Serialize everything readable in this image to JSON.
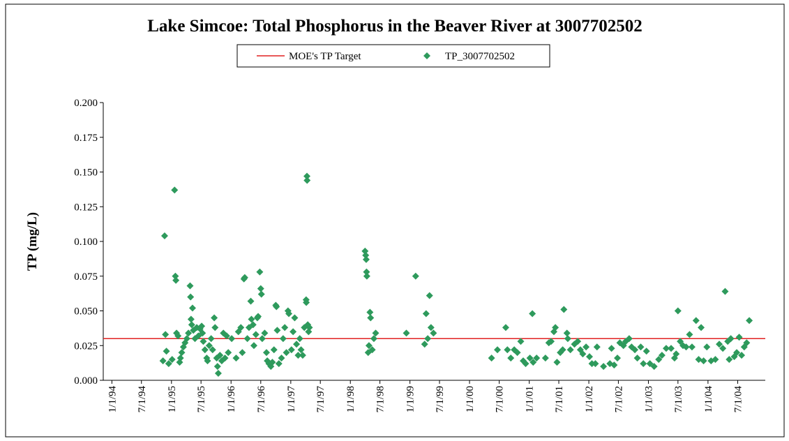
{
  "chart_data": {
    "type": "scatter",
    "title": "Lake Simcoe: Total Phosphorus in the Beaver River at 3007702502",
    "y_label": "TP (mg/L)",
    "xlim": [
      "1993-11-09",
      "2004-12-17"
    ],
    "xticks": [
      {
        "value": "1994-01-01",
        "label": "1/1/94"
      },
      {
        "value": "1994-07-01",
        "label": "7/1/94"
      },
      {
        "value": "1995-01-01",
        "label": "1/1/95"
      },
      {
        "value": "1995-07-01",
        "label": "7/1/95"
      },
      {
        "value": "1996-01-01",
        "label": "1/1/96"
      },
      {
        "value": "1996-07-01",
        "label": "7/1/96"
      },
      {
        "value": "1997-01-01",
        "label": "1/1/97"
      },
      {
        "value": "1997-07-01",
        "label": "7/1/97"
      },
      {
        "value": "1998-01-01",
        "label": "1/1/98"
      },
      {
        "value": "1998-07-01",
        "label": "7/1/98"
      },
      {
        "value": "1999-01-01",
        "label": "1/1/99"
      },
      {
        "value": "1999-07-01",
        "label": "7/1/99"
      },
      {
        "value": "2000-01-01",
        "label": "1/1/00"
      },
      {
        "value": "2000-07-01",
        "label": "7/1/00"
      },
      {
        "value": "2001-01-01",
        "label": "1/1/01"
      },
      {
        "value": "2001-07-01",
        "label": "7/1/01"
      },
      {
        "value": "2002-01-01",
        "label": "1/1/02"
      },
      {
        "value": "2002-07-01",
        "label": "7/1/02"
      },
      {
        "value": "2003-01-01",
        "label": "1/1/03"
      },
      {
        "value": "2003-07-01",
        "label": "7/1/03"
      },
      {
        "value": "2004-01-01",
        "label": "1/1/04"
      },
      {
        "value": "2004-07-01",
        "label": "7/1/04"
      }
    ],
    "ylim": [
      0,
      0.2
    ],
    "yticks": [
      {
        "value": 0,
        "label": "0.000"
      },
      {
        "value": 0.025,
        "label": "0.025"
      },
      {
        "value": 0.05,
        "label": "0.050"
      },
      {
        "value": 0.075,
        "label": "0.075"
      },
      {
        "value": 0.1,
        "label": "0.100"
      },
      {
        "value": 0.125,
        "label": "0.125"
      },
      {
        "value": 0.15,
        "label": "0.150"
      },
      {
        "value": 0.175,
        "label": "0.175"
      },
      {
        "value": 0.2,
        "label": "0.200"
      }
    ],
    "grid": false,
    "legend": "top",
    "series": [
      {
        "name": "MOE's TP Target",
        "color": "#e02020",
        "kind": "line",
        "x": [
          "1993-11-09",
          "2004-12-17"
        ],
        "values": [
          0.03,
          0.03
        ]
      },
      {
        "name": "TP_3007702502",
        "color": "#2e9a5c",
        "kind": "marker",
        "x": [
          "1994-11-10",
          "1994-11-20",
          "1994-11-25",
          "1994-12-01",
          "1994-12-15",
          "1995-01-05",
          "1995-01-20",
          "1995-01-25",
          "1995-01-28",
          "1995-02-01",
          "1995-02-10",
          "1995-02-20",
          "1995-02-25",
          "1995-03-05",
          "1995-03-15",
          "1995-03-25",
          "1995-04-05",
          "1995-04-15",
          "1995-04-25",
          "1995-04-28",
          "1995-05-01",
          "1995-05-05",
          "1995-05-10",
          "1995-05-15",
          "1995-05-25",
          "1995-06-05",
          "1995-06-15",
          "1995-06-25",
          "1995-07-05",
          "1995-07-10",
          "1995-07-15",
          "1995-07-25",
          "1995-08-05",
          "1995-08-10",
          "1995-08-20",
          "1995-09-01",
          "1995-09-10",
          "1995-09-20",
          "1995-09-25",
          "1995-10-05",
          "1995-10-10",
          "1995-10-15",
          "1995-10-25",
          "1995-11-05",
          "1995-11-15",
          "1995-11-25",
          "1995-12-05",
          "1995-12-15",
          "1996-01-05",
          "1996-02-01",
          "1996-02-15",
          "1996-03-01",
          "1996-03-10",
          "1996-03-20",
          "1996-03-25",
          "1996-04-10",
          "1996-04-20",
          "1996-05-01",
          "1996-05-05",
          "1996-05-15",
          "1996-05-20",
          "1996-06-01",
          "1996-06-10",
          "1996-06-15",
          "1996-06-25",
          "1996-07-01",
          "1996-07-05",
          "1996-07-10",
          "1996-07-25",
          "1996-08-05",
          "1996-08-10",
          "1996-08-20",
          "1996-09-01",
          "1996-09-10",
          "1996-09-20",
          "1996-10-01",
          "1996-10-05",
          "1996-10-10",
          "1996-10-20",
          "1996-11-05",
          "1996-11-15",
          "1996-11-25",
          "1996-12-05",
          "1996-12-15",
          "1996-12-20",
          "1997-01-05",
          "1997-01-15",
          "1997-01-25",
          "1997-02-05",
          "1997-02-15",
          "1997-02-25",
          "1997-03-05",
          "1997-03-15",
          "1997-03-25",
          "1997-04-05",
          "1997-04-06",
          "1997-04-10",
          "1997-04-11",
          "1997-04-15",
          "1997-04-20",
          "1997-04-25",
          "1998-04-01",
          "1998-04-05",
          "1998-04-08",
          "1998-04-10",
          "1998-04-12",
          "1998-04-20",
          "1998-04-25",
          "1998-05-01",
          "1998-05-05",
          "1998-05-15",
          "1998-05-25",
          "1998-06-05",
          "1998-12-10",
          "1999-02-05",
          "1999-04-01",
          "1999-04-10",
          "1999-04-20",
          "1999-05-01",
          "1999-05-10",
          "1999-05-25",
          "2000-05-15",
          "2000-06-20",
          "2000-08-10",
          "2000-08-20",
          "2000-09-10",
          "2000-10-01",
          "2000-10-20",
          "2000-11-10",
          "2000-11-25",
          "2000-12-10",
          "2001-01-05",
          "2001-01-20",
          "2001-01-25",
          "2001-02-15",
          "2001-04-10",
          "2001-05-01",
          "2001-05-15",
          "2001-06-01",
          "2001-06-10",
          "2001-06-20",
          "2001-07-10",
          "2001-07-25",
          "2001-08-01",
          "2001-08-20",
          "2001-08-25",
          "2001-09-10",
          "2001-10-05",
          "2001-10-25",
          "2001-11-10",
          "2001-11-25",
          "2001-12-15",
          "2002-01-05",
          "2002-01-20",
          "2002-02-10",
          "2002-02-20",
          "2002-04-01",
          "2002-05-10",
          "2002-05-20",
          "2002-06-05",
          "2002-06-25",
          "2002-07-10",
          "2002-08-01",
          "2002-08-15",
          "2002-09-05",
          "2002-09-20",
          "2002-10-10",
          "2002-10-25",
          "2002-11-15",
          "2002-12-01",
          "2002-12-20",
          "2003-01-10",
          "2003-02-05",
          "2003-03-05",
          "2003-03-25",
          "2003-04-20",
          "2003-05-20",
          "2003-06-10",
          "2003-06-20",
          "2003-07-01",
          "2003-07-15",
          "2003-08-01",
          "2003-08-20",
          "2003-09-10",
          "2003-09-25",
          "2003-10-20",
          "2003-11-05",
          "2003-11-20",
          "2003-12-05",
          "2003-12-25",
          "2004-01-20",
          "2004-02-15",
          "2004-03-10",
          "2004-04-01",
          "2004-04-15",
          "2004-05-01",
          "2004-05-10",
          "2004-05-20",
          "2004-06-10",
          "2004-06-25",
          "2004-07-10",
          "2004-07-25",
          "2004-08-10",
          "2004-08-25",
          "2004-09-10"
        ],
        "values": [
          0.014,
          0.104,
          0.033,
          0.021,
          0.012,
          0.015,
          0.137,
          0.075,
          0.072,
          0.034,
          0.032,
          0.013,
          0.016,
          0.02,
          0.024,
          0.027,
          0.03,
          0.034,
          0.068,
          0.06,
          0.044,
          0.04,
          0.052,
          0.036,
          0.03,
          0.038,
          0.032,
          0.037,
          0.039,
          0.034,
          0.028,
          0.022,
          0.016,
          0.014,
          0.025,
          0.03,
          0.022,
          0.045,
          0.038,
          0.016,
          0.01,
          0.005,
          0.018,
          0.014,
          0.034,
          0.016,
          0.032,
          0.02,
          0.03,
          0.016,
          0.035,
          0.038,
          0.02,
          0.073,
          0.074,
          0.03,
          0.038,
          0.057,
          0.044,
          0.04,
          0.025,
          0.033,
          0.045,
          0.046,
          0.078,
          0.066,
          0.062,
          0.03,
          0.034,
          0.02,
          0.014,
          0.012,
          0.01,
          0.013,
          0.022,
          0.054,
          0.053,
          0.036,
          0.012,
          0.016,
          0.03,
          0.038,
          0.02,
          0.05,
          0.048,
          0.022,
          0.035,
          0.045,
          0.026,
          0.018,
          0.03,
          0.022,
          0.018,
          0.038,
          0.058,
          0.056,
          0.147,
          0.144,
          0.04,
          0.035,
          0.038,
          0.093,
          0.09,
          0.087,
          0.078,
          0.075,
          0.02,
          0.025,
          0.049,
          0.045,
          0.022,
          0.03,
          0.034,
          0.034,
          0.075,
          0.026,
          0.048,
          0.03,
          0.061,
          0.038,
          0.034,
          0.016,
          0.022,
          0.038,
          0.022,
          0.016,
          0.022,
          0.02,
          0.028,
          0.014,
          0.012,
          0.016,
          0.048,
          0.013,
          0.016,
          0.016,
          0.027,
          0.028,
          0.035,
          0.038,
          0.013,
          0.02,
          0.022,
          0.051,
          0.034,
          0.03,
          0.022,
          0.026,
          0.028,
          0.022,
          0.019,
          0.024,
          0.017,
          0.012,
          0.012,
          0.024,
          0.01,
          0.012,
          0.023,
          0.011,
          0.016,
          0.027,
          0.025,
          0.028,
          0.03,
          0.024,
          0.022,
          0.016,
          0.024,
          0.012,
          0.021,
          0.012,
          0.01,
          0.015,
          0.018,
          0.023,
          0.023,
          0.016,
          0.019,
          0.05,
          0.028,
          0.025,
          0.024,
          0.033,
          0.024,
          0.043,
          0.015,
          0.038,
          0.014,
          0.024,
          0.014,
          0.015,
          0.026,
          0.023,
          0.064,
          0.028,
          0.015,
          0.03,
          0.017,
          0.02,
          0.031,
          0.018,
          0.024,
          0.027,
          0.043
        ]
      }
    ]
  }
}
